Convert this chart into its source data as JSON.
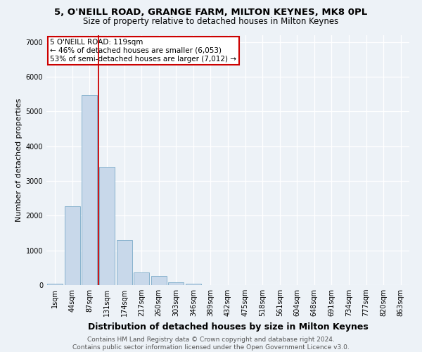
{
  "title": "5, O'NEILL ROAD, GRANGE FARM, MILTON KEYNES, MK8 0PL",
  "subtitle": "Size of property relative to detached houses in Milton Keynes",
  "xlabel": "Distribution of detached houses by size in Milton Keynes",
  "ylabel": "Number of detached properties",
  "categories": [
    "1sqm",
    "44sqm",
    "87sqm",
    "131sqm",
    "174sqm",
    "217sqm",
    "260sqm",
    "303sqm",
    "346sqm",
    "389sqm",
    "432sqm",
    "475sqm",
    "518sqm",
    "561sqm",
    "604sqm",
    "648sqm",
    "691sqm",
    "734sqm",
    "777sqm",
    "820sqm",
    "863sqm"
  ],
  "values": [
    50,
    2270,
    5480,
    3400,
    1290,
    370,
    270,
    80,
    50,
    10,
    0,
    0,
    0,
    0,
    0,
    0,
    0,
    0,
    0,
    0,
    0
  ],
  "bar_color": "#c8d8ea",
  "bar_edge_color": "#7aaac8",
  "vline_color": "#cc0000",
  "annotation_text": "5 O'NEILL ROAD: 119sqm\n← 46% of detached houses are smaller (6,053)\n53% of semi-detached houses are larger (7,012) →",
  "annotation_box_color": "white",
  "annotation_box_edge": "#cc0000",
  "ylim": [
    0,
    7200
  ],
  "yticks": [
    0,
    1000,
    2000,
    3000,
    4000,
    5000,
    6000,
    7000
  ],
  "bg_color": "#edf2f7",
  "grid_color": "white",
  "footer": "Contains HM Land Registry data © Crown copyright and database right 2024.\nContains public sector information licensed under the Open Government Licence v3.0.",
  "title_fontsize": 9.5,
  "subtitle_fontsize": 8.5,
  "xlabel_fontsize": 9,
  "ylabel_fontsize": 8,
  "tick_fontsize": 7,
  "footer_fontsize": 6.5,
  "annotation_fontsize": 7.5
}
